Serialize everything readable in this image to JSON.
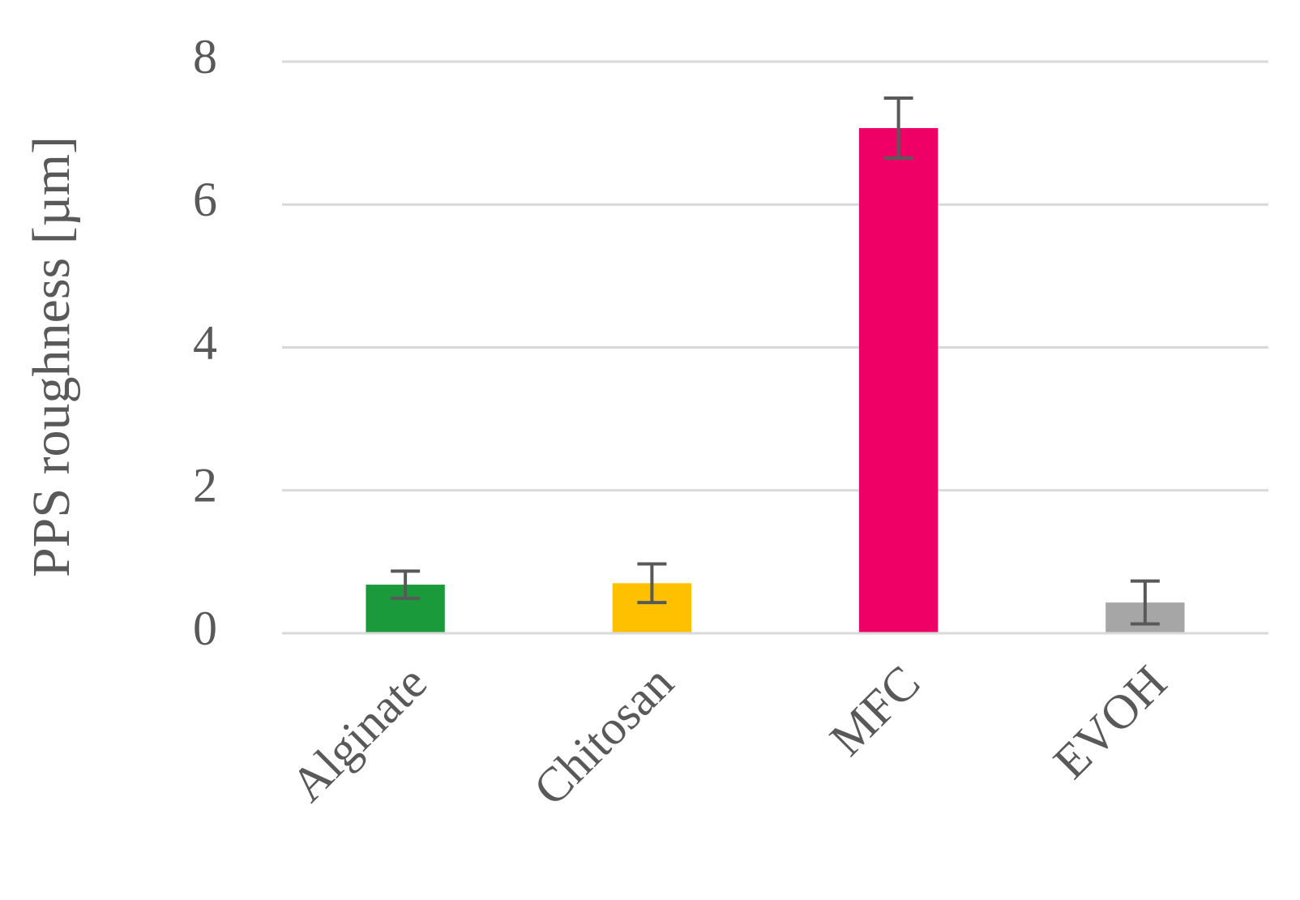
{
  "chart_data": {
    "type": "bar",
    "y_label": "PPS roughness [µm]",
    "categories": [
      "Alginate",
      "Chitosan",
      "MFC",
      "EVOH"
    ],
    "values": [
      0.68,
      0.7,
      7.07,
      0.43
    ],
    "errors": [
      0.19,
      0.27,
      0.42,
      0.3
    ],
    "colors": [
      "#1a9a3a",
      "#ffc000",
      "#ee0066",
      "#a6a6a6"
    ],
    "ylim": [
      0,
      8
    ],
    "yticks": [
      0,
      2,
      4,
      6,
      8
    ],
    "grid": true
  }
}
